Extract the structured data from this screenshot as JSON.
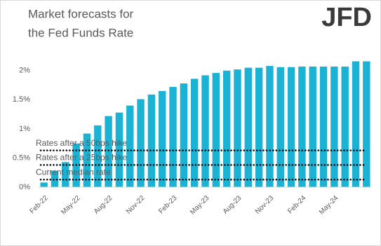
{
  "chart_data": {
    "type": "bar",
    "title": [
      "Market forecasts for",
      "the Fed Funds Rate"
    ],
    "logo": "JFD",
    "categories": [
      "Feb-22",
      null,
      null,
      "May-22",
      null,
      null,
      "Aug-22",
      null,
      null,
      "Nov-22",
      null,
      null,
      "Feb-23",
      null,
      null,
      "May-23",
      null,
      null,
      "Aug-23",
      null,
      null,
      "Nov-23",
      null,
      null,
      "Feb-24",
      null,
      null,
      "May-24",
      null,
      null,
      null
    ],
    "values": [
      0.08,
      0.28,
      0.43,
      0.75,
      0.92,
      1.06,
      1.22,
      1.28,
      1.4,
      1.51,
      1.59,
      1.65,
      1.72,
      1.78,
      1.86,
      1.92,
      1.96,
      2.0,
      2.02,
      2.05,
      2.05,
      2.08,
      2.06,
      2.06,
      2.07,
      2.07,
      2.07,
      2.07,
      2.07,
      2.16,
      2.16
    ],
    "color": "#1ab3d5",
    "ylim": [
      0,
      2.25
    ],
    "yticks": [
      {
        "value": 0,
        "label": "0%"
      },
      {
        "value": 0.5,
        "label": "0.5%"
      },
      {
        "value": 1,
        "label": "1%"
      },
      {
        "value": 1.5,
        "label": "1.5%"
      },
      {
        "value": 2,
        "label": "2%"
      }
    ],
    "grid": false,
    "reference_lines": [
      {
        "label": "Rates after a 50bps hike",
        "value": 0.63
      },
      {
        "label": "Rates after a 25bps hike",
        "value": 0.38
      },
      {
        "label": "Current median rate",
        "value": 0.13
      }
    ]
  }
}
